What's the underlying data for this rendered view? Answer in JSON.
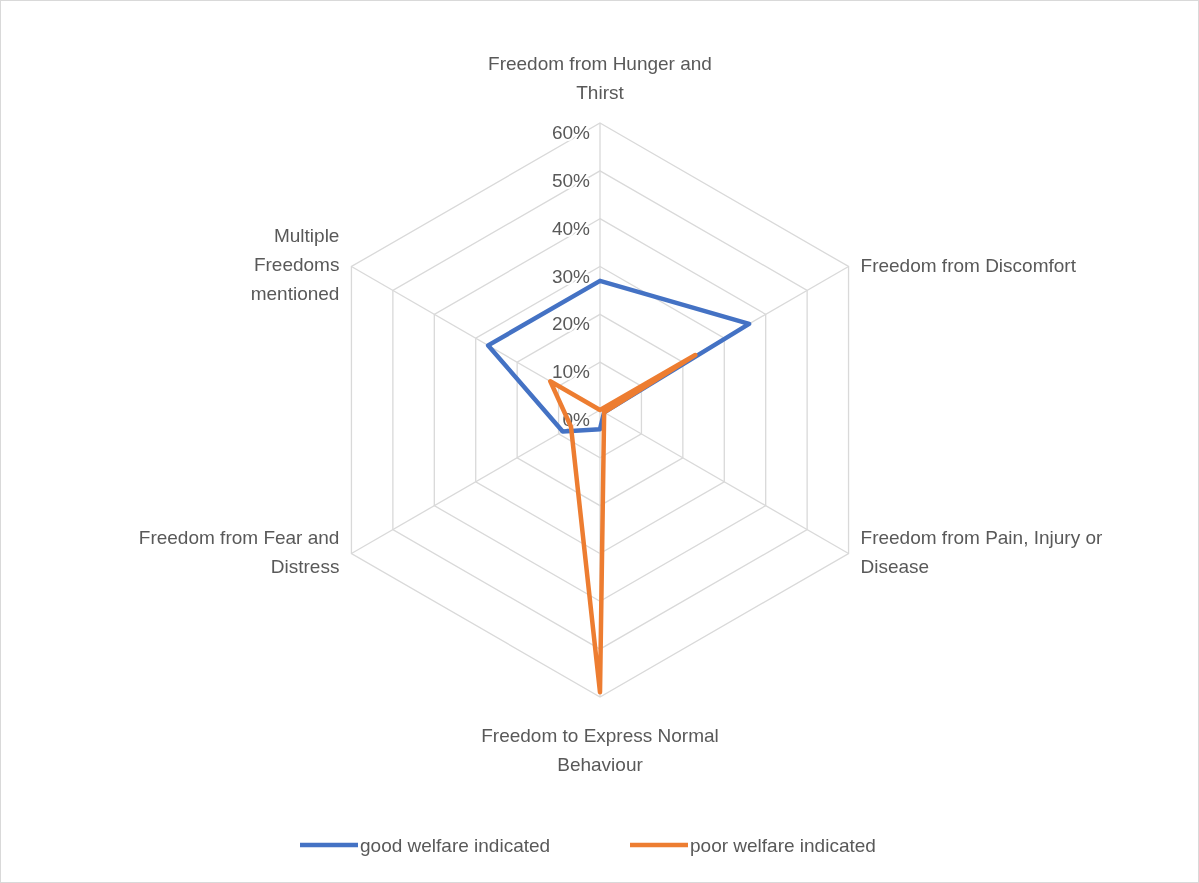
{
  "chart_data": {
    "type": "radar",
    "categories": [
      "Freedom from Hunger and Thirst",
      "Freedom from Discomfort",
      "Freedom from Pain, Injury or Disease",
      "Freedom to Express Normal Behaviour",
      "Freedom from Fear and Distress",
      "Multiple Freedoms mentioned"
    ],
    "series": [
      {
        "name": "good welfare indicated",
        "color": "#4472c4",
        "values": [
          27,
          36,
          1,
          4,
          9,
          27
        ]
      },
      {
        "name": "poor welfare indicated",
        "color": "#ed7d31",
        "values": [
          0,
          23,
          1,
          59,
          7,
          12
        ]
      }
    ],
    "ylim": [
      0,
      60
    ],
    "yticks": [
      {
        "value": 0,
        "label": "0%"
      },
      {
        "value": 10,
        "label": "10%"
      },
      {
        "value": 20,
        "label": "20%"
      },
      {
        "value": 30,
        "label": "30%"
      },
      {
        "value": 40,
        "label": "40%"
      },
      {
        "value": 50,
        "label": "50%"
      },
      {
        "value": 60,
        "label": "60%"
      }
    ],
    "grid": true,
    "legend": "bottom"
  }
}
